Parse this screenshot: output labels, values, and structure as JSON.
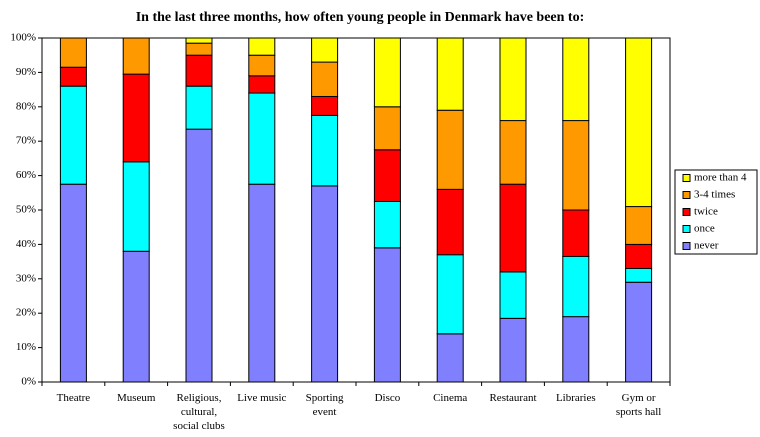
{
  "chart_data": {
    "type": "stacked_bar",
    "title": "In the last three months, how often young people in Denmark have been to:",
    "categories": [
      "Theatre",
      "Museum",
      "Religious,\ncultural,\nsocial clubs",
      "Live music",
      "Sporting\nevent",
      "Disco",
      "Cinema",
      "Restaurant",
      "Libraries",
      "Gym or\nsports hall"
    ],
    "series": [
      {
        "name": "never",
        "color": "#8080ff",
        "values": [
          57.5,
          38,
          73.5,
          57.5,
          57,
          39,
          14,
          18.5,
          19,
          29
        ]
      },
      {
        "name": "once",
        "color": "#00ffff",
        "values": [
          28.5,
          26,
          12.5,
          26.5,
          20.5,
          13.5,
          23,
          13.5,
          17.5,
          4
        ]
      },
      {
        "name": "twice",
        "color": "#ff0000",
        "values": [
          5.5,
          25.5,
          9,
          5,
          5.5,
          15,
          19,
          25.5,
          13.5,
          7
        ]
      },
      {
        "name": "3-4 times",
        "color": "#ff9900",
        "values": [
          8.5,
          10.5,
          3.5,
          6,
          10,
          12.5,
          23,
          18.5,
          26,
          11
        ]
      },
      {
        "name": "more than 4",
        "color": "#ffff00",
        "values": [
          0,
          0,
          1.5,
          5,
          7,
          20,
          21,
          24,
          24,
          49
        ]
      }
    ],
    "ylim": [
      0,
      100
    ],
    "yticks": [
      {
        "value": 0,
        "label": "0%"
      },
      {
        "value": 10,
        "label": "10%"
      },
      {
        "value": 20,
        "label": "20%"
      },
      {
        "value": 30,
        "label": "30%"
      },
      {
        "value": 40,
        "label": "40%"
      },
      {
        "value": 50,
        "label": "50%"
      },
      {
        "value": 60,
        "label": "60%"
      },
      {
        "value": 70,
        "label": "70%"
      },
      {
        "value": 80,
        "label": "80%"
      },
      {
        "value": 90,
        "label": "90%"
      },
      {
        "value": 100,
        "label": "100%"
      }
    ],
    "legend": "right"
  }
}
